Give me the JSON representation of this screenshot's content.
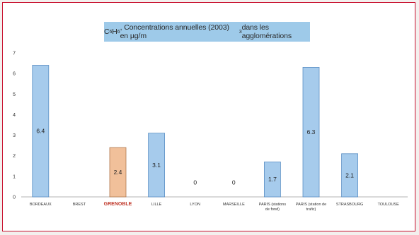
{
  "chart_data": {
    "type": "bar",
    "title": {
      "formula_base1": "C",
      "formula_sub1": "6",
      "formula_base2": "H",
      "formula_sub2": "6",
      "text_before_unit": ", Concentrations annuelles (2003) en µg/m",
      "unit_sup": "3",
      "text_after_unit": " dans les agglomérations"
    },
    "categories": [
      [
        "BORDEAUX"
      ],
      [
        "BREST"
      ],
      [
        "GRENOBLE"
      ],
      [
        "LILLE"
      ],
      [
        "LYON"
      ],
      [
        "MARSEILLE"
      ],
      [
        "PARIS (stations",
        "de fond)"
      ],
      [
        "PARIS (station de",
        "trafic)"
      ],
      [
        "STRASBOURG"
      ],
      [
        "TOULOUSE"
      ]
    ],
    "values": [
      6.4,
      null,
      2.4,
      3.1,
      0,
      0,
      1.7,
      6.3,
      2.1,
      null
    ],
    "labels": [
      "6.4",
      "",
      "2.4",
      "3.1",
      "0",
      "0",
      "1.7",
      "6.3",
      "2.1",
      ""
    ],
    "highlight_index": 2,
    "ylim": [
      0,
      7
    ],
    "yticks": [
      "0",
      "1",
      "2",
      "3",
      "4",
      "5",
      "6",
      "7"
    ],
    "grid": false,
    "colors": {
      "bar": "#a6cbec",
      "bar_stroke": "#5b8fc4",
      "highlight": "#f1c09a",
      "highlight_stroke": "#b07850",
      "highlight_text": "#c0392b",
      "title_bg": "#9ecae9",
      "frame": "#c8102e"
    }
  }
}
